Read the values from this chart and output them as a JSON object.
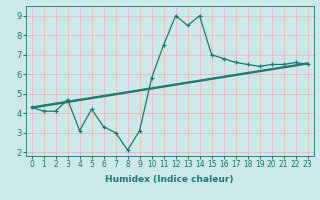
{
  "xlabel": "Humidex (Indice chaleur)",
  "bg_color": "#cce8e8",
  "grid_color": "#f0b0b0",
  "line_color": "#1a7a6e",
  "xlim": [
    -0.5,
    23.5
  ],
  "ylim": [
    1.8,
    9.5
  ],
  "xticks": [
    0,
    1,
    2,
    3,
    4,
    5,
    6,
    7,
    8,
    9,
    10,
    11,
    12,
    13,
    14,
    15,
    16,
    17,
    18,
    19,
    20,
    21,
    22,
    23
  ],
  "yticks": [
    2,
    3,
    4,
    5,
    6,
    7,
    8,
    9
  ],
  "main_series": [
    4.3,
    4.1,
    4.1,
    4.7,
    3.1,
    4.2,
    3.3,
    3.0,
    2.1,
    3.1,
    5.8,
    7.5,
    9.0,
    8.5,
    9.0,
    7.0,
    6.8,
    6.6,
    6.5,
    6.4,
    6.5,
    6.5,
    6.6,
    6.5
  ],
  "reg_lines": [
    {
      "x0": 0,
      "y0": 4.25,
      "x1": 23,
      "y1": 6.52
    },
    {
      "x0": 0,
      "y0": 4.28,
      "x1": 23,
      "y1": 6.55
    },
    {
      "x0": 0,
      "y0": 4.32,
      "x1": 23,
      "y1": 6.58
    }
  ]
}
